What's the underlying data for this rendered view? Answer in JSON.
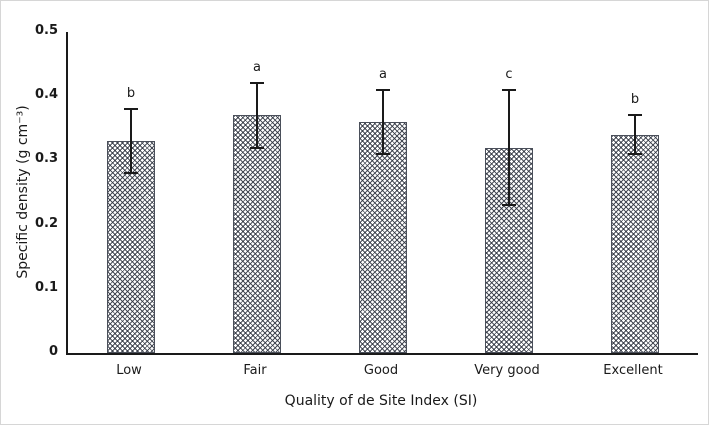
{
  "chart_data": {
    "type": "bar",
    "title": "",
    "xlabel": "Quality of de Site Index (SI)",
    "ylabel": "Specific density (g cm⁻³)",
    "categories": [
      "Low",
      "Fair",
      "Good",
      "Very good",
      "Excellent"
    ],
    "values": [
      0.33,
      0.37,
      0.36,
      0.32,
      0.34
    ],
    "error_up": [
      0.05,
      0.05,
      0.05,
      0.09,
      0.03
    ],
    "error_down": [
      0.05,
      0.05,
      0.05,
      0.09,
      0.03
    ],
    "letters": [
      "b",
      "a",
      "a",
      "c",
      "b"
    ],
    "ylim": [
      0,
      0.5
    ],
    "yticks": [
      "0",
      "0.1",
      "0.2",
      "0.3",
      "0.4",
      "0.5"
    ],
    "grid": false,
    "legend": false,
    "bar_pattern": "dense-crosshatch",
    "bar_fill": "#ffffff",
    "hatch_color": "#2d323e",
    "axis_color": "#1a1a1a"
  }
}
